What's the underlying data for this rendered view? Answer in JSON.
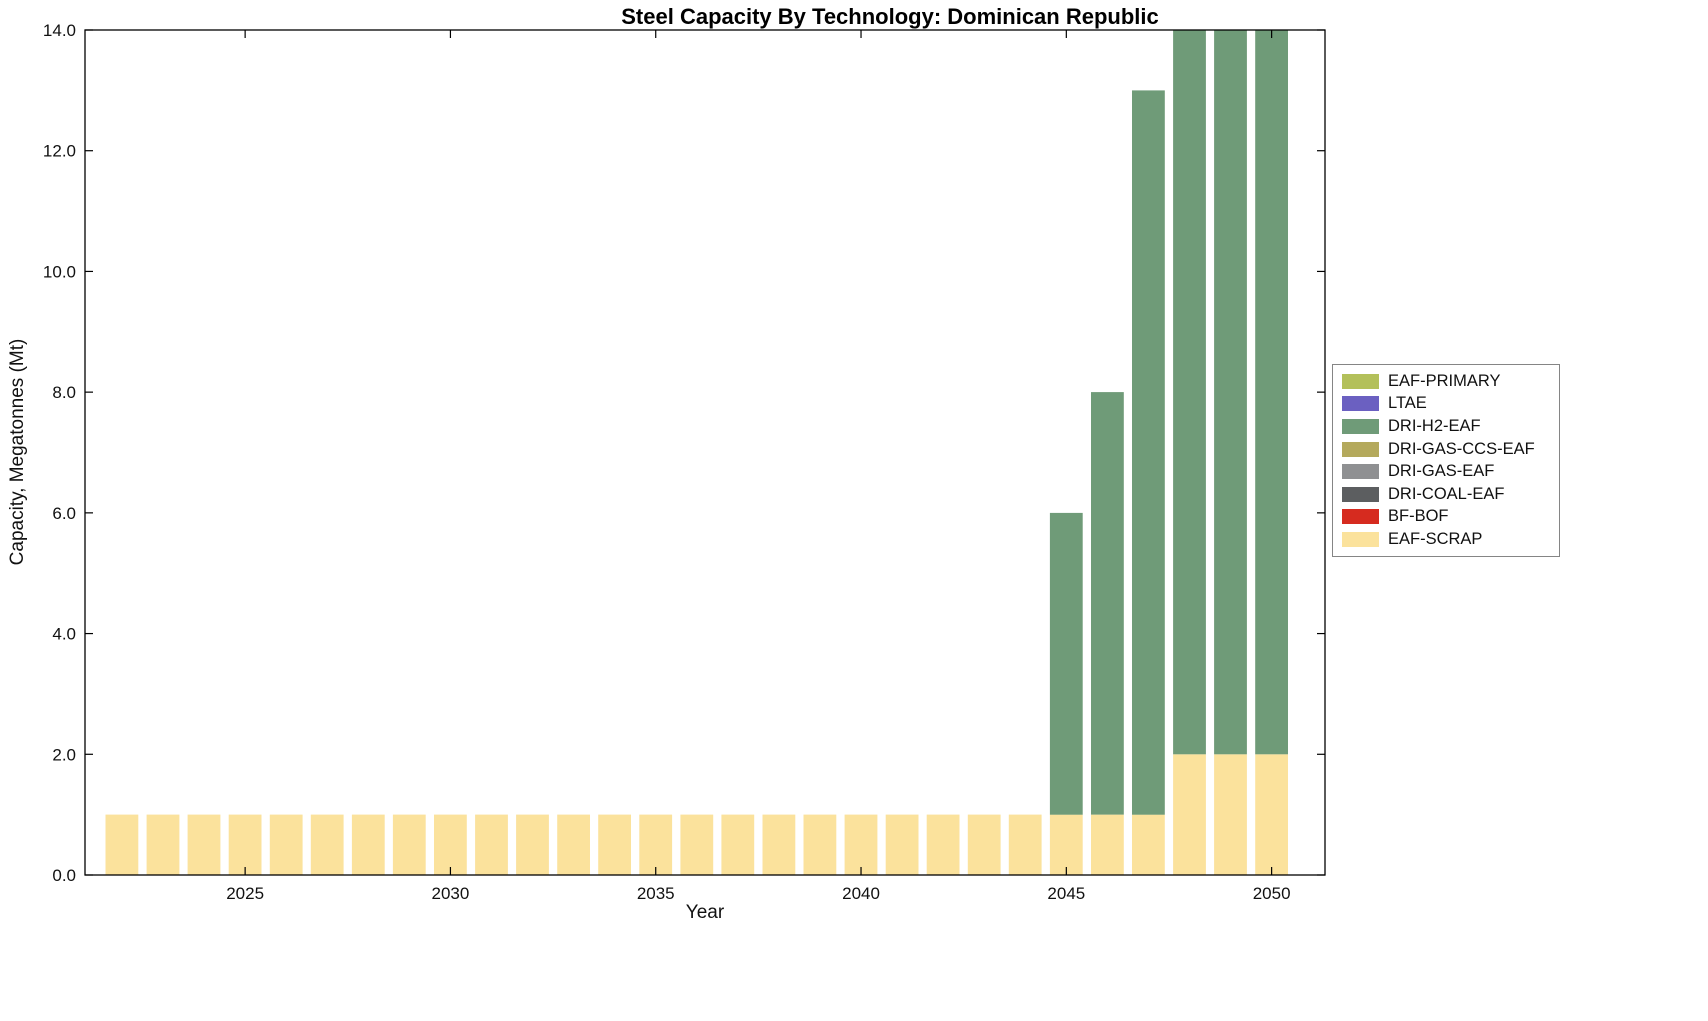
{
  "chart_data": {
    "type": "bar",
    "stacked": true,
    "title": "Steel Capacity By Technology: Dominican Republic",
    "xlabel": "Year",
    "ylabel": "Capacity, Megatonnes (Mt)",
    "xlim": [
      2021.1,
      2051.3
    ],
    "ylim": [
      0,
      14
    ],
    "grid": false,
    "xticks": [
      2025,
      2030,
      2035,
      2040,
      2045,
      2050
    ],
    "xtick_labels": [
      "2025",
      "2030",
      "2035",
      "2040",
      "2045",
      "2050"
    ],
    "yticks": [
      0,
      2,
      4,
      6,
      8,
      10,
      12,
      14
    ],
    "ytick_labels": [
      "0.0",
      "2.0",
      "4.0",
      "6.0",
      "8.0",
      "10.0",
      "12.0",
      "14.0"
    ],
    "categories": [
      2022,
      2023,
      2024,
      2025,
      2026,
      2027,
      2028,
      2029,
      2030,
      2031,
      2032,
      2033,
      2034,
      2035,
      2036,
      2037,
      2038,
      2039,
      2040,
      2041,
      2042,
      2043,
      2044,
      2045,
      2046,
      2047,
      2048,
      2049,
      2050
    ],
    "series": [
      {
        "name": "EAF-SCRAP",
        "color": "#FBE29C",
        "values": [
          1,
          1,
          1,
          1,
          1,
          1,
          1,
          1,
          1,
          1,
          1,
          1,
          1,
          1,
          1,
          1,
          1,
          1,
          1,
          1,
          1,
          1,
          1,
          1,
          1,
          1,
          2,
          2,
          2
        ]
      },
      {
        "name": "DRI-H2-EAF",
        "color": "#6F9B78",
        "values": [
          0,
          0,
          0,
          0,
          0,
          0,
          0,
          0,
          0,
          0,
          0,
          0,
          0,
          0,
          0,
          0,
          0,
          0,
          0,
          0,
          0,
          0,
          0,
          5,
          7,
          12,
          12,
          12,
          12
        ]
      }
    ],
    "legend": {
      "position": "right-outside",
      "entries": [
        {
          "label": "EAF-PRIMARY",
          "color": "#B3C05A"
        },
        {
          "label": "LTAE",
          "color": "#6B60C1"
        },
        {
          "label": "DRI-H2-EAF",
          "color": "#6F9B78"
        },
        {
          "label": "DRI-GAS-CCS-EAF",
          "color": "#B4A95C"
        },
        {
          "label": "DRI-GAS-EAF",
          "color": "#8F9092"
        },
        {
          "label": "DRI-COAL-EAF",
          "color": "#5C5E60"
        },
        {
          "label": "BF-BOF",
          "color": "#D62B1F"
        },
        {
          "label": "EAF-SCRAP",
          "color": "#FBE29C"
        }
      ]
    }
  }
}
